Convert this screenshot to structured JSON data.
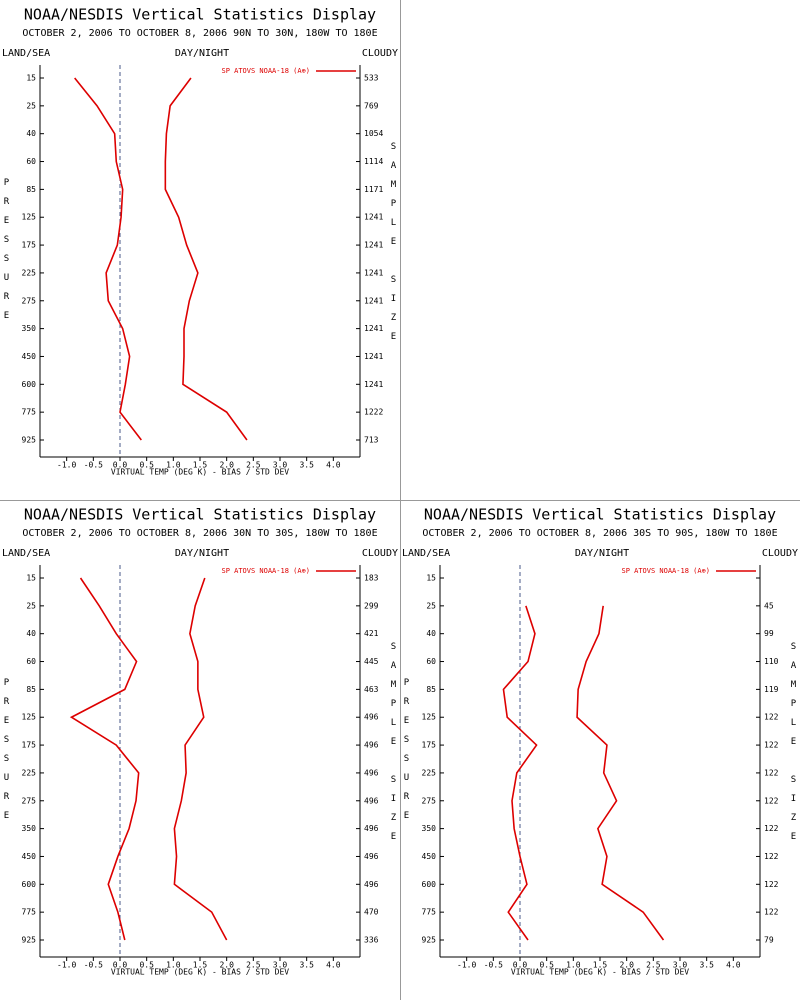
{
  "chart_data": [
    {
      "type": "line",
      "title": "NOAA/NESDIS Vertical Statistics Display",
      "subtitle": "OCTOBER 2, 2006 TO OCTOBER 8, 2006 90N TO 30N, 180W TO 180E",
      "left_label": "LAND/SEA",
      "center_label": "DAY/NIGHT",
      "right_label": "CLOUDY",
      "legend": "SP ATOVS NOAA-18 (A⊕)",
      "y_label": "PRESSURE",
      "y2_label": "SAMPLE SIZE",
      "x_label": "VIRTUAL TEMP (DEG K) - BIAS / STD DEV",
      "categories": [
        15,
        25,
        40,
        60,
        85,
        125,
        175,
        225,
        275,
        350,
        450,
        600,
        775,
        925
      ],
      "series": [
        {
          "color": "#dd0000",
          "values": [
            -0.85,
            -0.43,
            -0.1,
            -0.07,
            0.05,
            0.02,
            -0.05,
            -0.26,
            -0.22,
            0.05,
            0.18,
            0.1,
            0.0,
            0.4
          ]
        },
        {
          "color": "#dd0000",
          "values": [
            1.33,
            0.94,
            0.87,
            0.85,
            0.85,
            1.1,
            1.25,
            1.46,
            1.3,
            1.2,
            1.2,
            1.18,
            2.0,
            2.38
          ]
        }
      ],
      "sample_size": [
        533,
        769,
        1054,
        1114,
        1171,
        1241,
        1241,
        1241,
        1241,
        1241,
        1241,
        1241,
        1222,
        713
      ],
      "xlim": [
        -1.5,
        4.5
      ],
      "xticks": [
        {
          "value": -1,
          "label": "-1.0"
        },
        -0.5,
        {
          "value": 0,
          "label": "0.0"
        },
        0.5,
        {
          "value": 1,
          "label": "1.0"
        },
        1.5,
        {
          "value": 2,
          "label": "2.0"
        },
        2.5,
        {
          "value": 3,
          "label": "3.0"
        },
        3.5,
        {
          "value": 4,
          "label": "4.0"
        }
      ]
    },
    {
      "type": "line",
      "title": "NOAA/NESDIS Vertical Statistics Display",
      "subtitle": "OCTOBER 2, 2006 TO OCTOBER 8, 2006 30N TO 30S, 180W TO 180E",
      "left_label": "LAND/SEA",
      "center_label": "DAY/NIGHT",
      "right_label": "CLOUDY",
      "legend": "SP ATOVS NOAA-18 (A⊕)",
      "y_label": "PRESSURE",
      "y2_label": "SAMPLE SIZE",
      "x_label": "VIRTUAL TEMP (DEG K) - BIAS / STD DEV",
      "categories": [
        15,
        25,
        40,
        60,
        85,
        125,
        175,
        225,
        275,
        350,
        450,
        600,
        775,
        925
      ],
      "series": [
        {
          "color": "#dd0000",
          "values": [
            -0.74,
            -0.39,
            -0.07,
            0.31,
            0.09,
            -0.91,
            -0.07,
            0.35,
            0.3,
            0.17,
            -0.04,
            -0.22,
            -0.04,
            0.09
          ]
        },
        {
          "color": "#dd0000",
          "values": [
            1.59,
            1.41,
            1.31,
            1.46,
            1.46,
            1.57,
            1.22,
            1.24,
            1.15,
            1.02,
            1.06,
            1.02,
            1.72,
            2.0
          ]
        }
      ],
      "sample_size": [
        183,
        299,
        421,
        445,
        463,
        496,
        496,
        496,
        496,
        496,
        496,
        496,
        470,
        336
      ],
      "xlim": [
        -1.5,
        4.5
      ],
      "xticks": [
        {
          "value": -1,
          "label": "-1.0"
        },
        -0.5,
        {
          "value": 0,
          "label": "0.0"
        },
        0.5,
        {
          "value": 1,
          "label": "1.0"
        },
        1.5,
        {
          "value": 2,
          "label": "2.0"
        },
        2.5,
        {
          "value": 3,
          "label": "3.0"
        },
        3.5,
        {
          "value": 4,
          "label": "4.0"
        }
      ]
    },
    {
      "type": "line",
      "title": "NOAA/NESDIS Vertical Statistics Display",
      "subtitle": "OCTOBER 2, 2006 TO OCTOBER 8, 2006 30S TO 90S, 180W TO 180E",
      "left_label": "LAND/SEA",
      "center_label": "DAY/NIGHT",
      "right_label": "CLOUDY",
      "legend": "SP ATOVS NOAA-18 (A⊕)",
      "y_label": "PRESSURE",
      "y2_label": "SAMPLE SIZE",
      "x_label": "VIRTUAL TEMP (DEG K) - BIAS / STD DEV",
      "categories": [
        15,
        25,
        40,
        60,
        85,
        125,
        175,
        225,
        275,
        350,
        450,
        600,
        775,
        925
      ],
      "series": [
        {
          "color": "#dd0000",
          "values": [
            null,
            0.11,
            0.28,
            0.15,
            -0.31,
            -0.24,
            0.31,
            -0.06,
            -0.15,
            -0.11,
            0.0,
            0.13,
            -0.22,
            0.15
          ]
        },
        {
          "color": "#dd0000",
          "values": [
            null,
            1.56,
            1.48,
            1.24,
            1.09,
            1.07,
            1.63,
            1.57,
            1.81,
            1.46,
            1.63,
            1.54,
            2.31,
            2.69
          ]
        }
      ],
      "sample_size": [
        null,
        45,
        99,
        110,
        119,
        122,
        122,
        122,
        122,
        122,
        122,
        122,
        122,
        79
      ],
      "xlim": [
        -1.5,
        4.5
      ],
      "xticks": [
        {
          "value": -1,
          "label": "-1.0"
        },
        -0.5,
        {
          "value": 0,
          "label": "0.0"
        },
        0.5,
        {
          "value": 1,
          "label": "1.0"
        },
        1.5,
        {
          "value": 2,
          "label": "2.0"
        },
        2.5,
        {
          "value": 3,
          "label": "3.0"
        },
        3.5,
        {
          "value": 4,
          "label": "4.0"
        }
      ]
    }
  ]
}
